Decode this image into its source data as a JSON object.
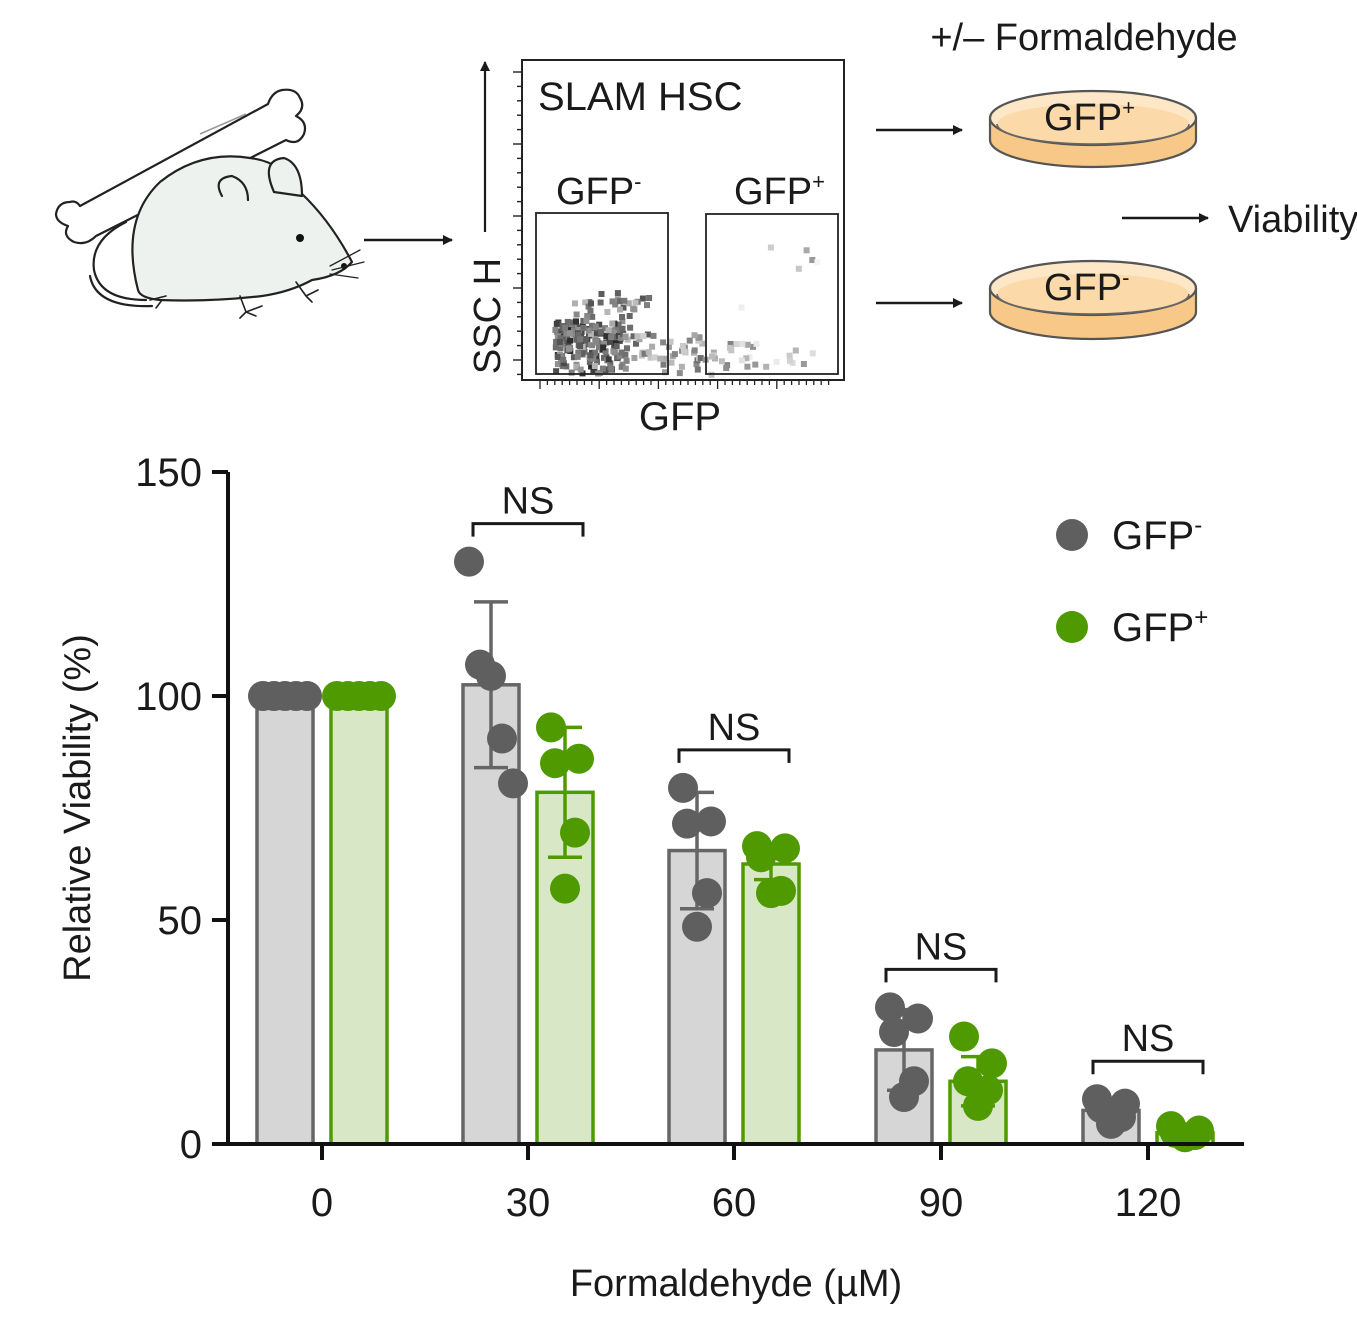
{
  "schematic": {
    "flow_panel_title": "SLAM HSC",
    "gate_neg_label": "GFP",
    "gate_neg_sup": "-",
    "gate_pos_label": "GFP",
    "gate_pos_sup": "+",
    "flow_y_axis_label": "SSC H",
    "flow_x_axis_label": "GFP",
    "treatment_label": "+/– Formaldehyde",
    "dish_pos_label": "GFP",
    "dish_pos_sup": "+",
    "dish_neg_label": "GFP",
    "dish_neg_sup": "-",
    "readout_label": "Viability",
    "icons": [
      "mouse-icon",
      "bone-icon",
      "petri-dish-icon",
      "arrow-right-icon"
    ]
  },
  "chart_data": {
    "type": "bar",
    "title": "",
    "xlabel": "Formaldehyde (µM)",
    "ylabel": "Relative Viability (%)",
    "categories": [
      "0",
      "30",
      "60",
      "90",
      "120"
    ],
    "ylim": [
      0,
      150
    ],
    "yticks": [
      0,
      50,
      100,
      150
    ],
    "grid": false,
    "legend_position": "top-right",
    "series": [
      {
        "name": "GFP",
        "name_sup": "-",
        "color": "#5f5f5f",
        "bar_fill": "#d6d6d6",
        "bar_stroke": "#666666",
        "values": [
          100,
          102.5,
          65.5,
          21,
          7.5
        ],
        "sd": [
          0,
          18.5,
          13,
          9,
          1.5
        ],
        "points": [
          [
            100,
            100,
            100,
            100,
            100
          ],
          [
            130,
            107,
            104.5,
            90.5,
            80.5
          ],
          [
            79.5,
            72,
            71.5,
            56,
            48.5
          ],
          [
            30.5,
            28,
            25,
            14,
            10.5
          ],
          [
            10,
            9,
            8,
            6,
            4.5
          ]
        ]
      },
      {
        "name": "GFP",
        "name_sup": "+",
        "color": "#4f9a00",
        "bar_fill": "#d8e8c6",
        "bar_stroke": "#4f9a00",
        "values": [
          100,
          78.5,
          62.5,
          14,
          2.5
        ],
        "sd": [
          0,
          14.5,
          3.5,
          5.5,
          1
        ],
        "points": [
          [
            100,
            100,
            100,
            100,
            100
          ],
          [
            93,
            86,
            85,
            69.5,
            57
          ],
          [
            66.5,
            66,
            64,
            56.5,
            56
          ],
          [
            24,
            18,
            14,
            12,
            8.5
          ],
          [
            4,
            3,
            2.5,
            2,
            1.5
          ]
        ]
      }
    ],
    "annotations": [
      {
        "label": "NS",
        "category": "30"
      },
      {
        "label": "NS",
        "category": "60"
      },
      {
        "label": "NS",
        "category": "90"
      },
      {
        "label": "NS",
        "category": "120"
      }
    ]
  }
}
